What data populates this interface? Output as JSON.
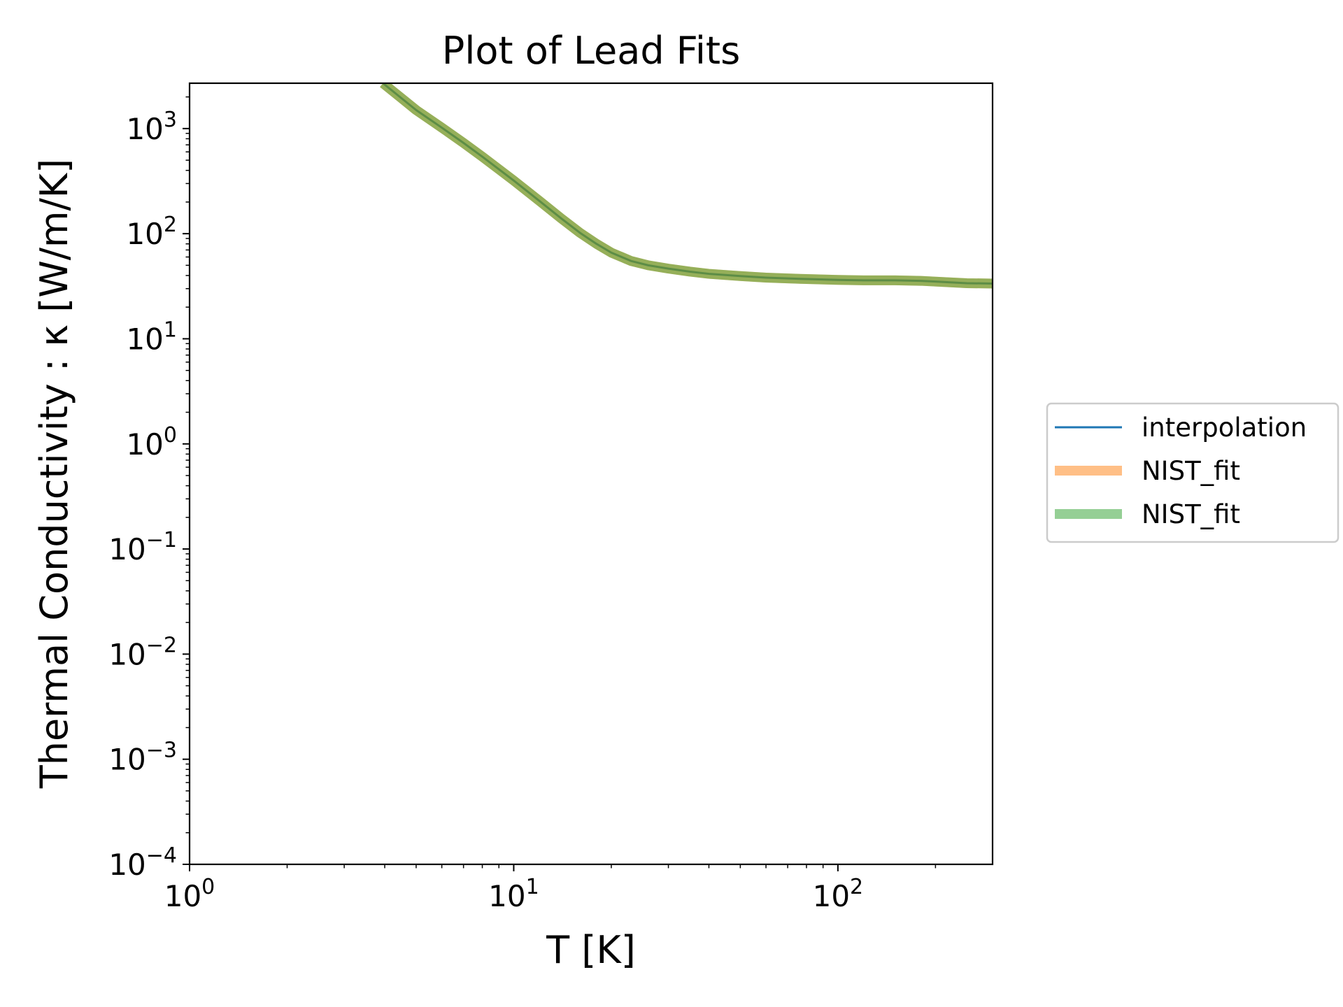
{
  "chart_data": {
    "type": "line",
    "title": "Plot of Lead Fits",
    "xlabel": "T [K]",
    "ylabel": "Thermal Conductivity : κ [W/m/K]",
    "xscale": "log",
    "yscale": "log",
    "xlim": [
      1,
      300
    ],
    "ylim": [
      0.0001,
      2700
    ],
    "grid": false,
    "legend_position": "outside-right",
    "x_ticks": [
      {
        "value": 1,
        "base": "10",
        "exp": "0"
      },
      {
        "value": 10,
        "base": "10",
        "exp": "1"
      },
      {
        "value": 100,
        "base": "10",
        "exp": "2"
      }
    ],
    "y_ticks": [
      {
        "value": 0.0001,
        "base": "10",
        "exp": "−4"
      },
      {
        "value": 0.001,
        "base": "10",
        "exp": "−3"
      },
      {
        "value": 0.01,
        "base": "10",
        "exp": "−2"
      },
      {
        "value": 0.1,
        "base": "10",
        "exp": "−1"
      },
      {
        "value": 1,
        "base": "10",
        "exp": "0"
      },
      {
        "value": 10,
        "base": "10",
        "exp": "1"
      },
      {
        "value": 100,
        "base": "10",
        "exp": "2"
      },
      {
        "value": 1000,
        "base": "10",
        "exp": "3"
      }
    ],
    "x": [
      3.95,
      4.5,
      5,
      6,
      7,
      8,
      9,
      10,
      12,
      14,
      16,
      18,
      20,
      23,
      26,
      30,
      35,
      40,
      50,
      60,
      70,
      80,
      100,
      120,
      150,
      180,
      200,
      250,
      300
    ],
    "series": [
      {
        "name": "interpolation",
        "color": "#1f77b4",
        "style": "thin",
        "values": [
          2700,
          1950,
          1500,
          1020,
          730,
          540,
          410,
          320,
          205,
          140,
          102,
          80,
          66,
          55,
          50,
          46.5,
          43.5,
          41.5,
          39.5,
          38.2,
          37.5,
          37,
          36.3,
          36,
          36,
          35.6,
          35,
          33.8,
          33.5
        ]
      },
      {
        "name": "NIST_fit",
        "color": "#ff7f0e",
        "style": "thick",
        "values": [
          2700,
          1950,
          1500,
          1020,
          730,
          540,
          410,
          320,
          205,
          140,
          102,
          80,
          66,
          55,
          50,
          46.5,
          43.5,
          41.5,
          39.5,
          38.2,
          37.5,
          37,
          36.3,
          36,
          36,
          35.6,
          35,
          33.8,
          33.5
        ]
      },
      {
        "name": "NIST_fit",
        "color": "#2ca02c",
        "style": "thick",
        "values": [
          2700,
          1950,
          1500,
          1020,
          730,
          540,
          410,
          320,
          205,
          140,
          102,
          80,
          66,
          55,
          50,
          46.5,
          43.5,
          41.5,
          39.5,
          38.2,
          37.5,
          37,
          36.3,
          36,
          36,
          35.6,
          35,
          33.8,
          33.5
        ]
      }
    ]
  }
}
